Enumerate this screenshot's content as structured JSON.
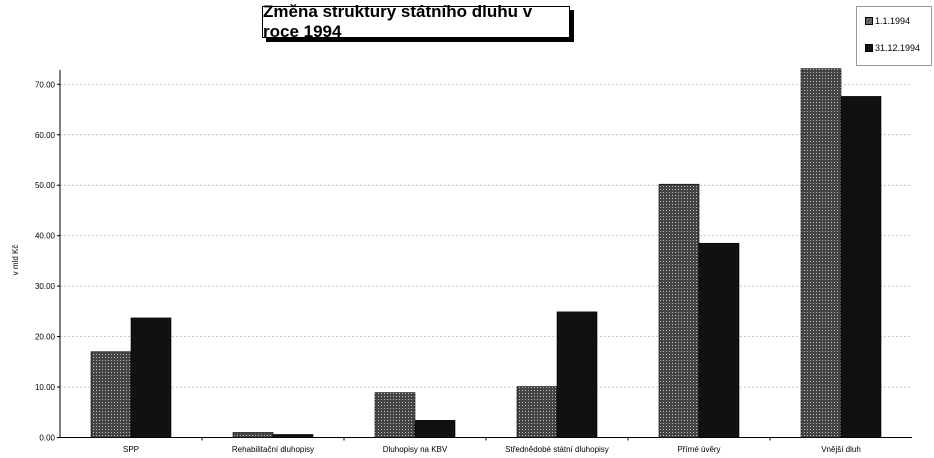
{
  "chart_data": {
    "type": "bar",
    "title": "Změna struktury státního dluhu v roce 1994",
    "ylabel": "v mld Kč",
    "xlabel": "",
    "ylim": [
      0,
      70
    ],
    "yticks": [
      "0.00",
      "10.00",
      "20.00",
      "30.00",
      "40.00",
      "50.00",
      "60.00",
      "70.00"
    ],
    "grid": true,
    "legend_position": "top-right",
    "categories": [
      "SPP",
      "Rehabilitační dluhopisy",
      "Dluhopisy na KBV",
      "Střednědobé státní dluhopisy",
      "Přímé úvěry",
      "Vnější dluh"
    ],
    "series": [
      {
        "name": "1.1.1994",
        "color": "#555555",
        "values": [
          17.0,
          1.0,
          8.9,
          10.1,
          50.2,
          73.1
        ]
      },
      {
        "name": "31.12.1994",
        "color": "#111111",
        "values": [
          23.7,
          0.6,
          3.4,
          24.9,
          38.5,
          67.6
        ]
      }
    ]
  }
}
